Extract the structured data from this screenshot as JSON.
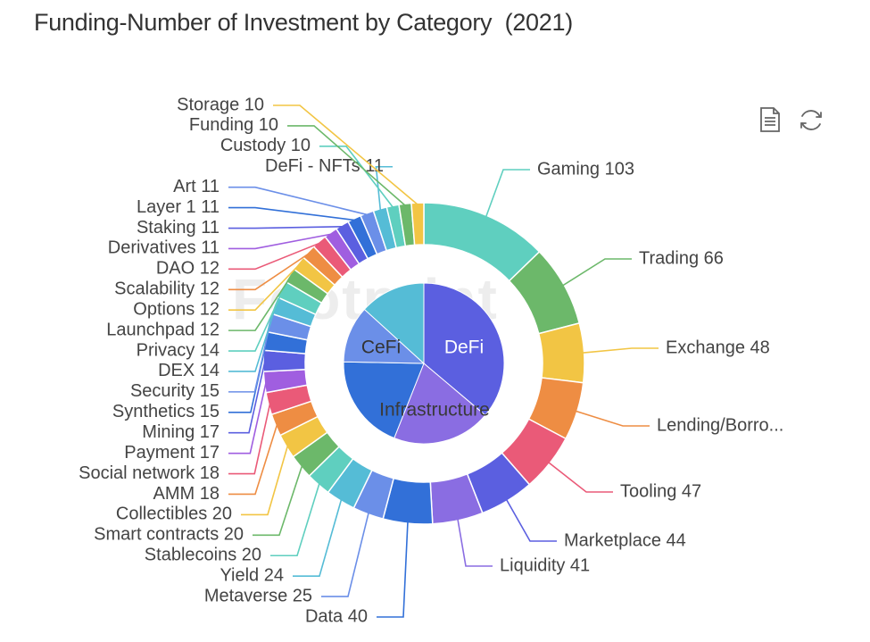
{
  "title": "Funding-Number of Investment by Category  (2021)",
  "toolbar": {
    "icons": [
      "data-view-icon",
      "restore-icon"
    ]
  },
  "watermark": "Footprint",
  "chart_data": {
    "type": "pie",
    "inner": {
      "categories": [
        "DeFi",
        "Infrastructure",
        "CeFi"
      ],
      "colors": [
        "#5b5fe0",
        "#8a6de2",
        "#3270d8",
        "#6b8fe8",
        "#55bcd6"
      ],
      "slices": [
        {
          "name": "DeFi",
          "value": 300,
          "color": "#5b5fe0",
          "label": "DeFi"
        },
        {
          "name": "",
          "value": 165,
          "color": "#8a6de2",
          "label": ""
        },
        {
          "name": "Infrastructure",
          "value": 160,
          "color": "#3270d8",
          "label": "Infrastructure"
        },
        {
          "name": "CeFi",
          "value": 95,
          "color": "#6b8fe8",
          "label": "CeFi"
        },
        {
          "name": "",
          "value": 110,
          "color": "#55bcd6",
          "label": ""
        }
      ]
    },
    "outer": {
      "labels": [
        "Gaming",
        "Trading",
        "Exchange",
        "Lending/Borro...",
        "Tooling",
        "Marketplace",
        "Liquidity",
        "Data",
        "Metaverse",
        "Yield",
        "Stablecoins",
        "Smart contracts",
        "Collectibles",
        "AMM",
        "Social network",
        "Payment",
        "Mining",
        "Synthetics",
        "Security",
        "DEX",
        "Privacy",
        "Launchpad",
        "Options",
        "Scalability",
        "DAO",
        "Derivatives",
        "Staking",
        "Layer 1",
        "Art",
        "DeFi - NFTs",
        "Custody",
        "Funding",
        "Storage"
      ],
      "values": [
        103,
        66,
        48,
        47,
        47,
        44,
        41,
        40,
        25,
        24,
        20,
        20,
        20,
        18,
        18,
        17,
        17,
        15,
        15,
        14,
        14,
        12,
        12,
        12,
        12,
        11,
        11,
        11,
        11,
        11,
        10,
        10,
        10
      ],
      "display": [
        "Gaming 103",
        "Trading 66",
        "Exchange 48",
        "Lending/Borro...",
        "Tooling 47",
        "Marketplace 44",
        "Liquidity 41",
        "Data 40",
        "Metaverse 25",
        "Yield 24",
        "Stablecoins 20",
        "Smart contracts 20",
        "Collectibles 20",
        "AMM 18",
        "Social network 18",
        "Payment 17",
        "Mining 17",
        "Synthetics 15",
        "Security 15",
        "DEX 14",
        "Privacy 14",
        "Launchpad 12",
        "Options 12",
        "Scalability 12",
        "DAO 12",
        "Derivatives 11",
        "Staking 11",
        "Layer 1 11",
        "Art 11",
        "DeFi - NFTs 11",
        "Custody 10",
        "Funding 10",
        "Storage 10"
      ],
      "colors": [
        "#5fcfbf",
        "#6cb86a",
        "#f2c544",
        "#ee8d43",
        "#ea5a78",
        "#5b5fe0",
        "#8a6de2",
        "#3270d8",
        "#6b8fe8",
        "#55bcd6",
        "#5fcfbf",
        "#6cb86a",
        "#f2c544",
        "#ee8d43",
        "#ea5a78",
        "#a05ee0",
        "#5b5fe0",
        "#3270d8",
        "#6b8fe8",
        "#55bcd6",
        "#5fcfbf",
        "#6cb86a",
        "#f2c544",
        "#ee8d43",
        "#ea5a78",
        "#a05ee0",
        "#5b5fe0",
        "#3270d8",
        "#6b8fe8",
        "#55bcd6",
        "#5fcfbf",
        "#6cb86a",
        "#f2c544"
      ]
    }
  }
}
